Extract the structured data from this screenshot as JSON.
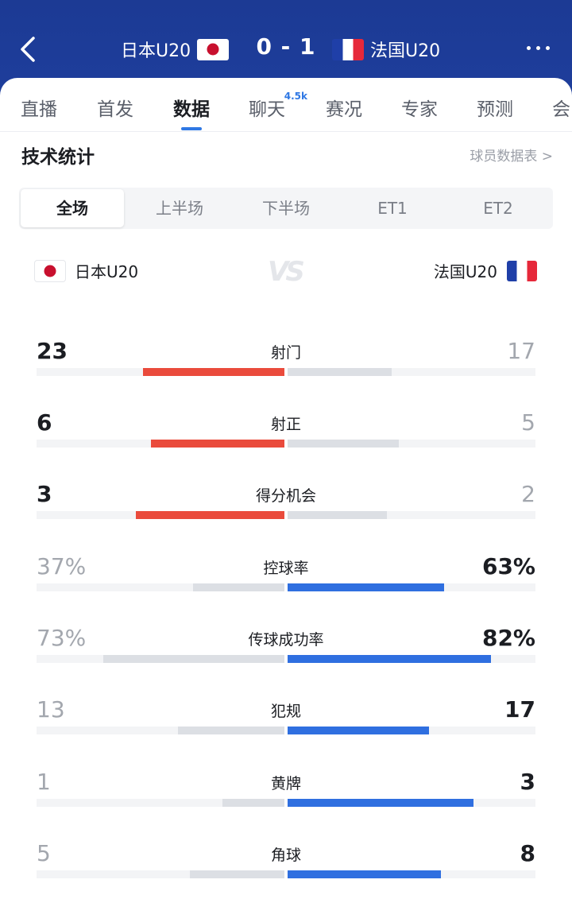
{
  "header": {
    "home_team": "日本U20",
    "away_team": "法国U20",
    "score": "0 - 1"
  },
  "tabs": [
    {
      "label": "直播"
    },
    {
      "label": "首发"
    },
    {
      "label": "数据"
    },
    {
      "label": "聊天",
      "badge": "4.5k"
    },
    {
      "label": "赛况"
    },
    {
      "label": "专家"
    },
    {
      "label": "预测"
    },
    {
      "label": "会"
    }
  ],
  "section": {
    "title": "技术统计",
    "link": "球员数据表 >"
  },
  "periods": [
    "全场",
    "上半场",
    "下半场",
    "ET1",
    "ET2"
  ],
  "teams": {
    "home": "日本U20",
    "away": "法国U20",
    "vs": "VS"
  },
  "stats": [
    {
      "label": "射门",
      "home": "23",
      "away": "17",
      "home_frac": 0.57,
      "away_frac": 0.42,
      "leader": "home"
    },
    {
      "label": "射正",
      "home": "6",
      "away": "5",
      "home_frac": 0.54,
      "away_frac": 0.45,
      "leader": "home"
    },
    {
      "label": "得分机会",
      "home": "3",
      "away": "2",
      "home_frac": 0.6,
      "away_frac": 0.4,
      "leader": "home"
    },
    {
      "label": "控球率",
      "home": "37%",
      "away": "63%",
      "home_frac": 0.37,
      "away_frac": 0.63,
      "leader": "away"
    },
    {
      "label": "传球成功率",
      "home": "73%",
      "away": "82%",
      "home_frac": 0.73,
      "away_frac": 0.82,
      "leader": "away"
    },
    {
      "label": "犯规",
      "home": "13",
      "away": "17",
      "home_frac": 0.43,
      "away_frac": 0.57,
      "leader": "away"
    },
    {
      "label": "黄牌",
      "home": "1",
      "away": "3",
      "home_frac": 0.25,
      "away_frac": 0.75,
      "leader": "away"
    },
    {
      "label": "角球",
      "home": "5",
      "away": "8",
      "home_frac": 0.38,
      "away_frac": 0.62,
      "leader": "away"
    }
  ],
  "colors": {
    "header_bg": "#1e3e9c",
    "home_bar": "#ea4b3c",
    "away_bar": "#2f6fe0",
    "neutral_bar": "#dcdfe4",
    "accent": "#2f78e4"
  }
}
